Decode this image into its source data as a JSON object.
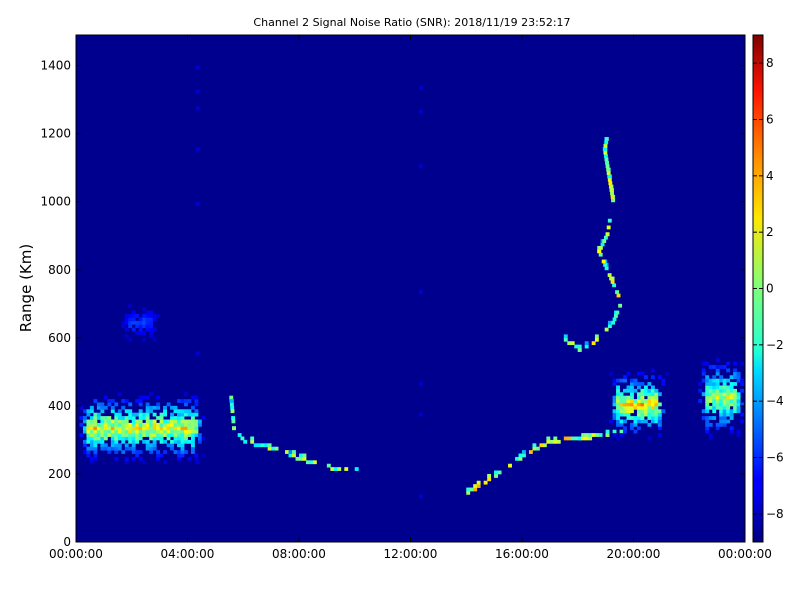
{
  "chart_data": {
    "type": "heatmap",
    "title": "Channel 2 Signal Noise Ratio (SNR): 2018/11/19 23:52:17",
    "xlabel": "",
    "ylabel": "Range (Km)",
    "x_ticks": [
      "00:00:00",
      "04:00:00",
      "08:00:00",
      "12:00:00",
      "16:00:00",
      "20:00:00",
      "00:00:00"
    ],
    "x_range_hours": [
      0,
      24
    ],
    "y_ticks": [
      0,
      200,
      400,
      600,
      800,
      1000,
      1200,
      1400
    ],
    "ylim": [
      0,
      1490
    ],
    "colorbar": {
      "ticks": [
        8,
        6,
        4,
        2,
        0,
        -2,
        -4,
        -6,
        -8
      ],
      "range": [
        -9,
        9
      ],
      "colormap": "jet"
    },
    "background_value": -9,
    "features": [
      {
        "name": "early-band",
        "t_start": 0.0,
        "t_end": 4.6,
        "center_range": 330,
        "thickness": 110,
        "peak": 4.5
      },
      {
        "name": "early-echo",
        "t_start": 1.5,
        "t_end": 3.0,
        "center_range": 640,
        "thickness": 60,
        "peak": -5
      },
      {
        "name": "descending-trace",
        "points": [
          [
            5.5,
            420
          ],
          [
            5.6,
            330
          ],
          [
            6.0,
            290
          ],
          [
            7.0,
            270
          ],
          [
            8.0,
            240
          ],
          [
            9.0,
            215
          ],
          [
            10.0,
            205
          ]
        ],
        "peak": 2
      },
      {
        "name": "ascending-trace",
        "points": [
          [
            14.0,
            140
          ],
          [
            15.0,
            190
          ],
          [
            16.0,
            250
          ],
          [
            17.0,
            290
          ],
          [
            18.0,
            300
          ],
          [
            19.0,
            310
          ],
          [
            19.5,
            320
          ]
        ],
        "peak": 4
      },
      {
        "name": "evening-band",
        "t_start": 19.0,
        "t_end": 21.2,
        "center_range": 400,
        "thickness": 110,
        "peak": 5
      },
      {
        "name": "late-band",
        "t_start": 22.2,
        "t_end": 24.0,
        "center_range": 420,
        "thickness": 130,
        "peak": 3
      },
      {
        "name": "high-arc",
        "points": [
          [
            17.5,
            590
          ],
          [
            18.0,
            560
          ],
          [
            18.5,
            580
          ],
          [
            19.2,
            640
          ],
          [
            19.5,
            700
          ],
          [
            18.7,
            850
          ],
          [
            19.0,
            900
          ],
          [
            19.2,
            1000
          ],
          [
            18.9,
            1150
          ],
          [
            19.0,
            1190
          ]
        ],
        "peak": 3
      }
    ]
  }
}
